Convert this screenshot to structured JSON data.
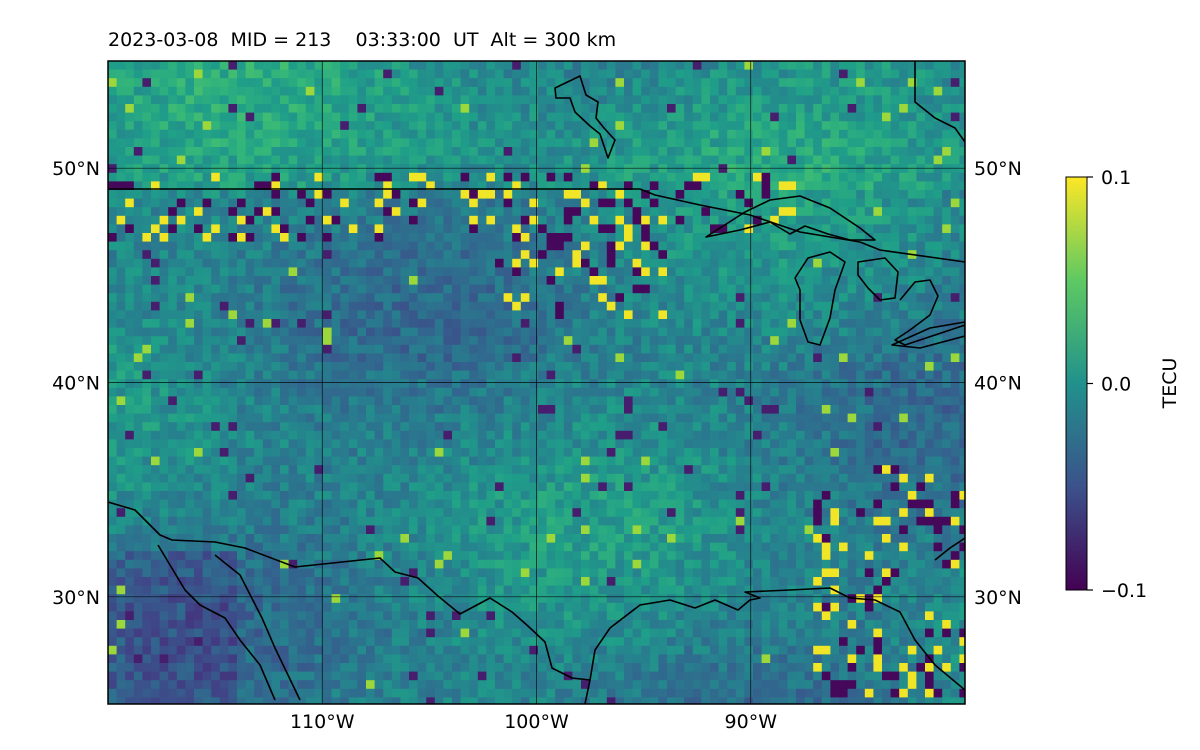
{
  "title": "2023-03-08  MID = 213    03:33:00  UT  Alt = 300 km",
  "map": {
    "lon_range": [
      -120,
      -80
    ],
    "lat_range": [
      25,
      55
    ],
    "lat_ticks": [
      {
        "value": 50,
        "label": "50°N"
      },
      {
        "value": 40,
        "label": "40°N"
      },
      {
        "value": 30,
        "label": "30°N"
      }
    ],
    "lon_ticks": [
      {
        "value": -110,
        "label": "110°W"
      },
      {
        "value": -100,
        "label": "100°W"
      },
      {
        "value": -90,
        "label": "90°W"
      }
    ],
    "gridlines": true,
    "coastlines": true,
    "borders": true
  },
  "colorbar": {
    "label": "TECU",
    "min": -0.1,
    "max": 0.1,
    "ticks": [
      {
        "value": 0.1,
        "label": "0.1"
      },
      {
        "value": 0.0,
        "label": "0.0"
      },
      {
        "value": -0.1,
        "label": "−0.1"
      }
    ],
    "colormap": "viridis"
  },
  "colors": {
    "background": "#ffffff",
    "grid": "#000000",
    "coast": "#000000"
  }
}
